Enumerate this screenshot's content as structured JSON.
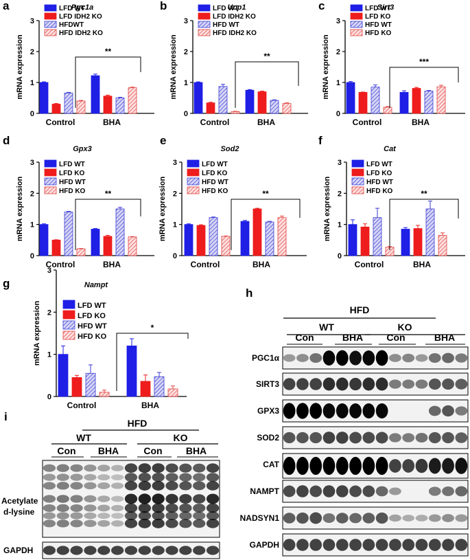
{
  "colors": {
    "lfd_wt": "#1f1fe6",
    "lfd_ko": "#ee1c1c",
    "hfd_wt_fill": "#c9c9f2",
    "hfd_wt_stroke": "#3a3ad6",
    "hfd_ko_fill": "#fbd3d3",
    "hfd_ko_stroke": "#e0433f"
  },
  "icons": {
    "significance": "bracket-with-asterisks"
  },
  "chart_data": [
    {
      "panel": "a",
      "type": "bar",
      "title": "Pgc1a",
      "ylabel": "mRNA expression",
      "ylim": [
        0,
        3
      ],
      "yticks": [
        0,
        1,
        2,
        3
      ],
      "categories": [
        "Control",
        "BHA"
      ],
      "series": [
        {
          "name": "LFD WT",
          "values": [
            1.0,
            1.22
          ],
          "errors": [
            0.02,
            0.05
          ]
        },
        {
          "name": "LFD IDH2 KO",
          "values": [
            0.3,
            0.56
          ],
          "errors": [
            0.02,
            0.03
          ]
        },
        {
          "name": "HFDWT",
          "values": [
            0.66,
            0.5
          ],
          "errors": [
            0.02,
            0.02
          ]
        },
        {
          "name": "HFD IDH2  KO",
          "values": [
            0.4,
            0.83
          ],
          "errors": [
            0.02,
            0.02
          ]
        }
      ],
      "significance": "**"
    },
    {
      "panel": "b",
      "type": "bar",
      "title": "Ucp1",
      "ylabel": "mRNA expression",
      "ylim": [
        0,
        3
      ],
      "yticks": [
        0,
        1,
        2,
        3
      ],
      "categories": [
        "Control",
        "BHA"
      ],
      "series": [
        {
          "name": "LFD WT",
          "values": [
            1.0,
            0.75
          ],
          "errors": [
            0.02,
            0.02
          ]
        },
        {
          "name": "LFD IDH2 KO",
          "values": [
            0.34,
            0.7
          ],
          "errors": [
            0.02,
            0.02
          ]
        },
        {
          "name": "HFD WT",
          "values": [
            0.87,
            0.42
          ],
          "errors": [
            0.07,
            0.02
          ]
        },
        {
          "name": "HFD  IDH2  KO",
          "values": [
            0.06,
            0.32
          ],
          "errors": [
            0.01,
            0.02
          ]
        }
      ],
      "significance": "**"
    },
    {
      "panel": "c",
      "type": "bar",
      "title": "Sirt3",
      "ylabel": "mRNA expression",
      "ylim": [
        0,
        3
      ],
      "yticks": [
        0,
        1,
        2,
        3
      ],
      "categories": [
        "Control",
        "BHA"
      ],
      "series": [
        {
          "name": "LFD WT",
          "values": [
            1.0,
            0.68
          ],
          "errors": [
            0.03,
            0.05
          ]
        },
        {
          "name": "LFD KO",
          "values": [
            0.68,
            0.81
          ],
          "errors": [
            0.01,
            0.03
          ]
        },
        {
          "name": "HFD WT",
          "values": [
            0.85,
            0.72
          ],
          "errors": [
            0.07,
            0.02
          ]
        },
        {
          "name": "HFD KO",
          "values": [
            0.2,
            0.86
          ],
          "errors": [
            0.02,
            0.05
          ]
        }
      ],
      "significance": "***"
    },
    {
      "panel": "d",
      "type": "bar",
      "title": "Gpx3",
      "ylabel": "mRNA expression",
      "ylim": [
        0,
        3
      ],
      "yticks": [
        0,
        1,
        2,
        3
      ],
      "categories": [
        "Control",
        "BHA"
      ],
      "series": [
        {
          "name": "LFD WT",
          "values": [
            1.0,
            0.85
          ],
          "errors": [
            0.02,
            0.02
          ]
        },
        {
          "name": "LFD KO",
          "values": [
            0.5,
            0.62
          ],
          "errors": [
            0.01,
            0.03
          ]
        },
        {
          "name": "HFD WT",
          "values": [
            1.4,
            1.5
          ],
          "errors": [
            0.02,
            0.05
          ]
        },
        {
          "name": "HFD KO",
          "values": [
            0.22,
            0.6
          ],
          "errors": [
            0.01,
            0.01
          ]
        }
      ],
      "significance": "**"
    },
    {
      "panel": "e",
      "type": "bar",
      "title": "Sod2",
      "ylabel": "mRNA expression",
      "ylim": [
        0,
        3
      ],
      "yticks": [
        0,
        1,
        2,
        3
      ],
      "categories": [
        "Control",
        "BHA"
      ],
      "series": [
        {
          "name": "LFD WT",
          "values": [
            1.0,
            1.1
          ],
          "errors": [
            0.02,
            0.03
          ]
        },
        {
          "name": "LFD KO",
          "values": [
            0.97,
            1.5
          ],
          "errors": [
            0.02,
            0.02
          ]
        },
        {
          "name": "HFD WT",
          "values": [
            1.22,
            1.08
          ],
          "errors": [
            0.02,
            0.02
          ]
        },
        {
          "name": "HFD KO",
          "values": [
            0.62,
            1.22
          ],
          "errors": [
            0.01,
            0.05
          ]
        }
      ],
      "significance": "**"
    },
    {
      "panel": "f",
      "type": "bar",
      "title": "Cat",
      "ylabel": "mRNA expression",
      "ylim": [
        0,
        3
      ],
      "yticks": [
        0,
        1,
        2,
        3
      ],
      "categories": [
        "Control",
        "BHA"
      ],
      "series": [
        {
          "name": "LFD WT",
          "values": [
            1.0,
            0.85
          ],
          "errors": [
            0.15,
            0.05
          ]
        },
        {
          "name": "LFD KO",
          "values": [
            0.92,
            0.87
          ],
          "errors": [
            0.1,
            0.1
          ]
        },
        {
          "name": "HFD WT",
          "values": [
            1.22,
            1.5
          ],
          "errors": [
            0.3,
            0.25
          ]
        },
        {
          "name": "HFD KO",
          "values": [
            0.27,
            0.65
          ],
          "errors": [
            0.02,
            0.08
          ]
        }
      ],
      "significance": "**"
    },
    {
      "panel": "g",
      "type": "bar",
      "title": "Nampt",
      "ylabel": "mRNA expression",
      "ylim": [
        0,
        3
      ],
      "yticks": [
        0,
        1,
        2,
        3
      ],
      "categories": [
        "Control",
        "BHA"
      ],
      "series": [
        {
          "name": "LFD WT",
          "values": [
            1.0,
            1.2
          ],
          "errors": [
            0.2,
            0.17
          ]
        },
        {
          "name": "LFD KO",
          "values": [
            0.45,
            0.36
          ],
          "errors": [
            0.05,
            0.15
          ]
        },
        {
          "name": "HFD WT",
          "values": [
            0.55,
            0.47
          ],
          "errors": [
            0.2,
            0.1
          ]
        },
        {
          "name": "HFD KO",
          "values": [
            0.1,
            0.18
          ],
          "errors": [
            0.05,
            0.07
          ]
        }
      ],
      "significance": "*"
    }
  ],
  "panels": {
    "h": {
      "letter": "h",
      "diet": "HFD",
      "groups": [
        "WT",
        "KO"
      ],
      "treatments": [
        "Con",
        "BHA",
        "Con",
        "BHA"
      ],
      "rows": [
        "PGC1α",
        "SIRT3",
        "GPX3",
        "SOD2",
        "CAT",
        "NAMPT",
        "NADSYN1",
        "GAPDH"
      ]
    },
    "i": {
      "letter": "i",
      "diet": "HFD",
      "groups": [
        "WT",
        "KO"
      ],
      "treatments": [
        "Con",
        "BHA",
        "Con",
        "BHA"
      ],
      "rows": [
        "Acetylate",
        "d-lysine",
        "GAPDH"
      ]
    }
  }
}
